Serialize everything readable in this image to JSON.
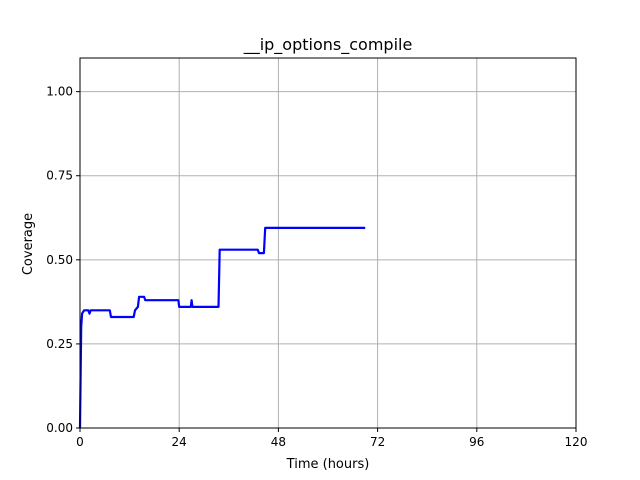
{
  "chart_data": {
    "type": "line",
    "title": "__ip_options_compile",
    "xlabel": "Time (hours)",
    "ylabel": "Coverage",
    "xlim": [
      0,
      120
    ],
    "ylim": [
      0,
      1.1
    ],
    "xticks": [
      0,
      24,
      48,
      72,
      96,
      120
    ],
    "yticks": [
      0.0,
      0.25,
      0.5,
      0.75,
      1.0
    ],
    "xtick_labels": [
      "0",
      "24",
      "48",
      "72",
      "96",
      "120"
    ],
    "ytick_labels": [
      "0.00",
      "0.25",
      "0.50",
      "0.75",
      "1.00"
    ],
    "grid": true,
    "series": [
      {
        "color": "#0000ff",
        "x": [
          0.0,
          0.3,
          0.5,
          1.0,
          2.0,
          2.3,
          2.6,
          3.0,
          7.2,
          7.5,
          13.0,
          13.3,
          14.0,
          14.3,
          15.5,
          15.8,
          23.8,
          24.0,
          26.8,
          27.0,
          27.2,
          27.5,
          33.5,
          33.8,
          43.0,
          43.3,
          44.5,
          44.8,
          69.0
        ],
        "y": [
          0.0,
          0.3,
          0.34,
          0.35,
          0.35,
          0.34,
          0.35,
          0.35,
          0.35,
          0.33,
          0.33,
          0.35,
          0.36,
          0.39,
          0.39,
          0.38,
          0.38,
          0.36,
          0.36,
          0.38,
          0.36,
          0.36,
          0.36,
          0.53,
          0.53,
          0.52,
          0.52,
          0.595,
          0.595
        ]
      }
    ]
  }
}
